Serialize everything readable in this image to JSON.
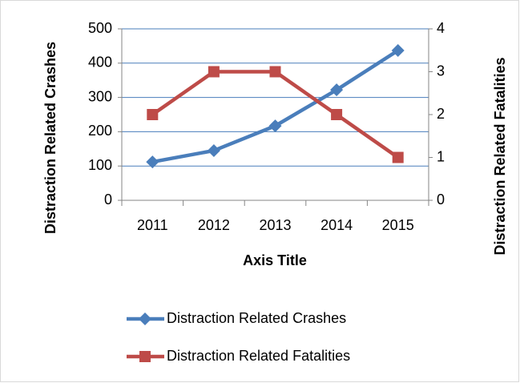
{
  "chart_data": {
    "type": "line",
    "categories": [
      "2011",
      "2012",
      "2013",
      "2014",
      "2015"
    ],
    "x_label": "Axis Title",
    "y_label": "Distraction Related Crashes",
    "y2_label": "Distraction Related Fatalities",
    "series": [
      {
        "name": "Distraction Related Crashes",
        "color": "#4a7ebb",
        "marker": "diamond",
        "values": [
          112,
          145,
          217,
          322,
          437
        ]
      },
      {
        "name": "Distraction Related Fatalities",
        "color": "#be4b48",
        "marker": "square",
        "axis": "y2",
        "values": [
          2,
          3,
          3,
          2,
          1
        ]
      }
    ],
    "ylim": [
      0,
      500
    ],
    "yticks": [
      0,
      100,
      200,
      300,
      400,
      500
    ],
    "y2lim": [
      0,
      4
    ],
    "y2ticks": [
      0,
      1,
      2,
      3,
      4
    ],
    "grid": true,
    "legend": "bottom"
  }
}
